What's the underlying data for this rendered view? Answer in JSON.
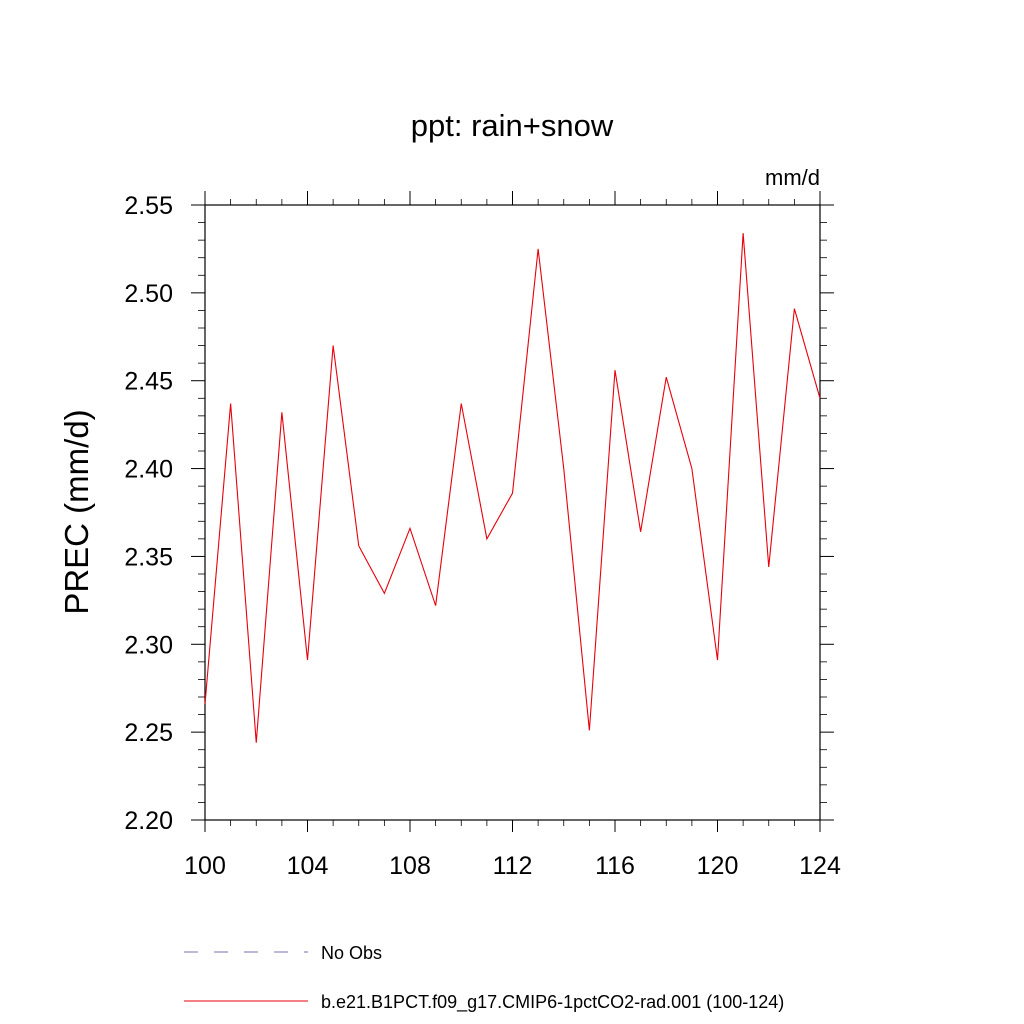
{
  "chart_data": {
    "type": "line",
    "title": "ppt: rain+snow",
    "units_label": "mm/d",
    "ylabel": "PREC  (mm/d)",
    "xlabel": "",
    "xlim": [
      100,
      124
    ],
    "ylim": [
      2.2,
      2.55
    ],
    "x_ticks": [
      100,
      104,
      108,
      112,
      116,
      120,
      124
    ],
    "x_tick_labels": [
      "100",
      "104",
      "108",
      "112",
      "116",
      "120",
      "124"
    ],
    "y_ticks": [
      2.2,
      2.25,
      2.3,
      2.35,
      2.4,
      2.45,
      2.5,
      2.55
    ],
    "y_tick_labels": [
      "2.20",
      "2.25",
      "2.30",
      "2.35",
      "2.40",
      "2.45",
      "2.50",
      "2.55"
    ],
    "grid": false,
    "legend_position": "bottom",
    "series": [
      {
        "name": "b.e21.B1PCT.f09_g17.CMIP6-1pctCO2-rad.001 (100-124)",
        "color": "#e8000b",
        "style": "solid",
        "x": [
          100,
          101,
          102,
          103,
          104,
          105,
          106,
          107,
          108,
          109,
          110,
          111,
          112,
          113,
          114,
          115,
          116,
          117,
          118,
          119,
          120,
          121,
          122,
          123,
          124
        ],
        "y": [
          2.266,
          2.437,
          2.244,
          2.432,
          2.291,
          2.47,
          2.356,
          2.329,
          2.366,
          2.322,
          2.437,
          2.36,
          2.386,
          2.525,
          2.4,
          2.251,
          2.456,
          2.364,
          2.452,
          2.4,
          2.291,
          2.534,
          2.344,
          2.491,
          2.44
        ]
      }
    ],
    "legend_entries": [
      {
        "label": "No Obs",
        "color": "#7b6fb0",
        "style": "dashed"
      },
      {
        "label": "b.e21.B1PCT.f09_g17.CMIP6-1pctCO2-rad.001 (100-124)",
        "color": "#e8000b",
        "style": "solid"
      }
    ]
  }
}
